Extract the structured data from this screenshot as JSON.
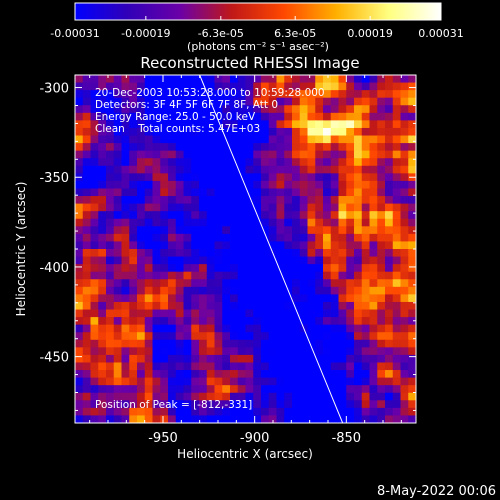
{
  "chart_data": {
    "type": "heatmap",
    "title": "Reconstructed RHESSI Image",
    "xlabel": "Heliocentric X (arcsec)",
    "ylabel": "Heliocentric Y (arcsec)",
    "xlim": [
      -998,
      -812
    ],
    "ylim": [
      -487,
      -293
    ],
    "xticks": [
      -950,
      -900,
      -850
    ],
    "xtick_labels": [
      "-950",
      "-900",
      "-850"
    ],
    "yticks": [
      -300,
      -350,
      -400,
      -450
    ],
    "ytick_labels": [
      "-300",
      "-350",
      "-400",
      "-450"
    ],
    "colorbar": {
      "range": [
        -0.00031,
        0.00031
      ],
      "ticks": [
        -0.00031,
        -0.00019,
        -6.3e-05,
        6.3e-05,
        0.00019,
        0.00031
      ],
      "tick_labels": [
        "-0.00031",
        "-0.00019",
        "-6.3e-05",
        "6.3e-05",
        "0.00019",
        "0.00031"
      ],
      "unit_label": "(photons cm⁻² s⁻¹ asec⁻²)",
      "colors": [
        "#0000ff",
        "#3000b8",
        "#6a00a8",
        "#c01818",
        "#ff4800",
        "#ffb000",
        "#ffff80",
        "#ffffff"
      ]
    },
    "annotations": [
      "20-Dec-2003 10:53:28.000 to 10:59:28.000",
      "Detectors: 3F 4F 5F 6F 7F 8F, Att 0",
      "Energy Range: 25.0 - 50.0 keV",
      "Clean    Total counts: 5.47E+03"
    ],
    "peak_label": "Position of Peak = [-812,-331]",
    "peak": [
      -812,
      -331
    ],
    "limb_line": [
      [
        -930,
        -293
      ],
      [
        -852,
        -487
      ]
    ],
    "grid_cols": 44,
    "grid_rows": 46,
    "map_seed": 7
  },
  "footer": {
    "date": "8-May-2022 00:06"
  }
}
